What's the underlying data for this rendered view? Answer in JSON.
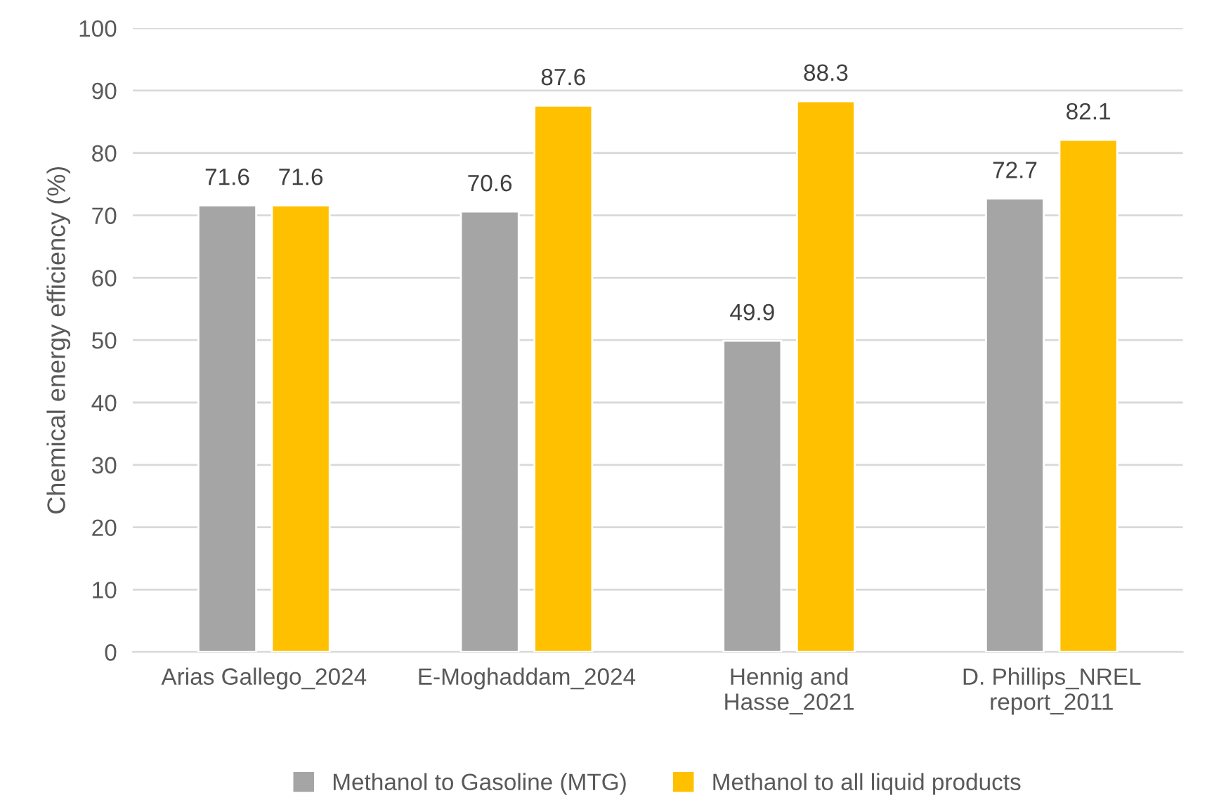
{
  "chart_data": {
    "type": "bar",
    "ylabel": "Chemical energy efficiency (%)",
    "categories": [
      "Arias Gallego_2024",
      "E-Moghaddam_2024",
      "Hennig and\nHasse_2021",
      "D. Phillips_NREL\nreport_2011"
    ],
    "series": [
      {
        "name": "Methanol to Gasoline (MTG)",
        "color": "#a5a5a5",
        "values": [
          71.6,
          70.6,
          49.9,
          72.7
        ]
      },
      {
        "name": "Methanol to all liquid products",
        "color": "#ffc000",
        "values": [
          71.6,
          87.6,
          88.3,
          82.1
        ]
      }
    ],
    "ylim": [
      0,
      100
    ],
    "yticks": [
      0,
      10,
      20,
      30,
      40,
      50,
      60,
      70,
      80,
      90,
      100
    ],
    "grid": "y",
    "legend": "bottom",
    "data_labels": true
  }
}
